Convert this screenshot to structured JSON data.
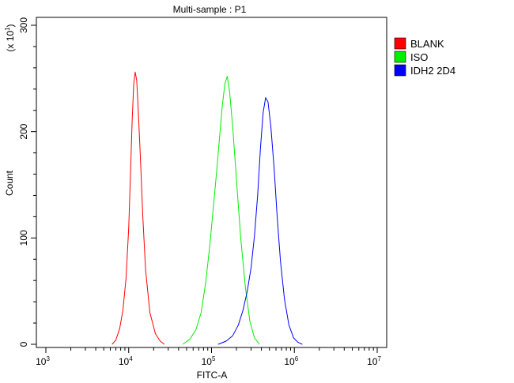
{
  "chart_data": {
    "type": "line",
    "title": "Multi-sample : P1",
    "xlabel": "FITC-A",
    "ylabel": "Count",
    "y_multiplier": {
      "base": "(x 10",
      "exp": "1",
      "close": ")"
    },
    "x_scale": "log",
    "xlim": [
      1000,
      10000000
    ],
    "ylim": [
      0,
      300
    ],
    "x_ticks": [
      {
        "value": 1000,
        "base": "10",
        "exp": "3"
      },
      {
        "value": 10000,
        "base": "10",
        "exp": "4"
      },
      {
        "value": 100000,
        "base": "10",
        "exp": "5"
      },
      {
        "value": 1000000,
        "base": "10",
        "exp": "6"
      },
      {
        "value": 10000000,
        "base": "10",
        "exp": "7"
      }
    ],
    "y_ticks": [
      {
        "value": 0,
        "label": "0"
      },
      {
        "value": 100,
        "label": "100"
      },
      {
        "value": 200,
        "label": "200"
      },
      {
        "value": 300,
        "label": "300"
      }
    ],
    "grid": false,
    "legend_position": "top-right",
    "series": [
      {
        "name": "BLANK",
        "color": "#ff0000",
        "x": [
          6300,
          7000,
          7800,
          8500,
          9300,
          10000,
          10500,
          11000,
          11500,
          12000,
          12500,
          13000,
          13800,
          14800,
          16000,
          18000,
          21000,
          24000,
          27000
        ],
        "y": [
          0,
          4,
          15,
          32,
          62,
          110,
          160,
          210,
          245,
          256,
          248,
          222,
          178,
          120,
          70,
          30,
          10,
          3,
          0
        ]
      },
      {
        "name": "ISO",
        "color": "#00ee00",
        "x": [
          45000,
          55000,
          65000,
          75000,
          85000,
          95000,
          105000,
          115000,
          125000,
          135000,
          145000,
          155000,
          165000,
          180000,
          200000,
          225000,
          255000,
          290000,
          330000,
          380000
        ],
        "y": [
          0,
          5,
          14,
          30,
          58,
          92,
          128,
          162,
          195,
          225,
          245,
          252,
          238,
          205,
          155,
          100,
          55,
          22,
          6,
          0
        ]
      },
      {
        "name": "IDH2 2D4",
        "color": "#0000ff",
        "x": [
          120000,
          150000,
          180000,
          210000,
          240000,
          270000,
          300000,
          330000,
          360000,
          390000,
          420000,
          450000,
          480000,
          520000,
          570000,
          620000,
          680000,
          760000,
          860000,
          980000,
          1100000,
          1250000
        ],
        "y": [
          0,
          3,
          8,
          18,
          32,
          50,
          72,
          102,
          140,
          185,
          218,
          232,
          228,
          205,
          165,
          120,
          78,
          42,
          18,
          6,
          2,
          0
        ]
      }
    ]
  }
}
